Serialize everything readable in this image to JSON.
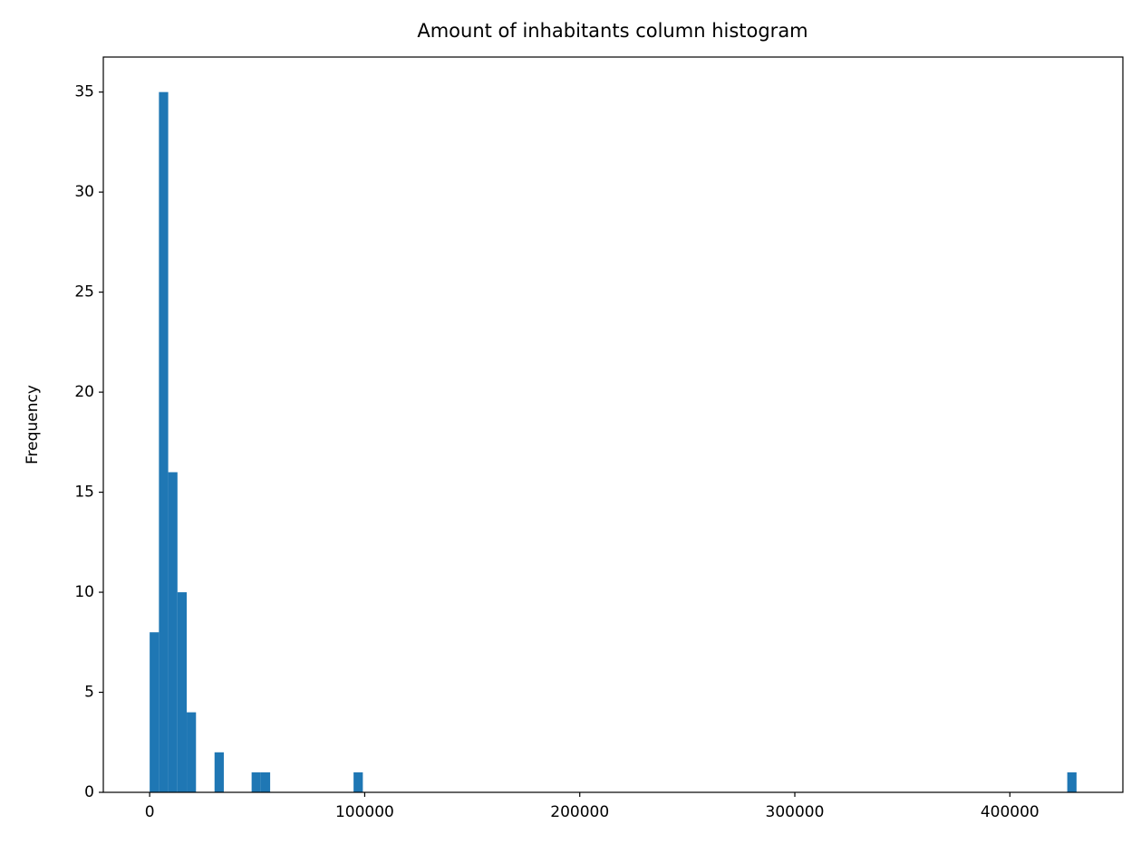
{
  "chart_data": {
    "type": "histogram",
    "title": "Amount of inhabitants column histogram",
    "y_label": "Frequency",
    "bins": [
      0,
      4310,
      8620,
      12930,
      17240,
      21550,
      25860,
      30170,
      34480,
      38790,
      43100,
      47410,
      51720,
      56030,
      60340,
      64650,
      68960,
      73270,
      77580,
      81890,
      86200,
      90510,
      94820,
      99130,
      103440,
      107750,
      112060,
      116370,
      120680,
      124990,
      129300,
      133610,
      137920,
      142230,
      146540,
      150850,
      155160,
      159470,
      163780,
      168090,
      172400,
      176710,
      181020,
      185330,
      189640,
      193950,
      198260,
      202570,
      206880,
      211190,
      215500,
      219810,
      224120,
      228430,
      232740,
      237050,
      241360,
      245670,
      249980,
      254290,
      258600,
      262910,
      267220,
      271530,
      275840,
      280150,
      284460,
      288770,
      293080,
      297390,
      301700,
      306010,
      310320,
      314630,
      318940,
      323250,
      327560,
      331870,
      336180,
      340490,
      344800,
      349110,
      353420,
      357730,
      362040,
      366350,
      370660,
      374970,
      379280,
      383590,
      387900,
      392210,
      396520,
      400830,
      405140,
      409450,
      413760,
      418070,
      422380,
      426690,
      431000
    ],
    "values": [
      8,
      35,
      16,
      10,
      4,
      0,
      0,
      2,
      0,
      0,
      0,
      1,
      1,
      0,
      0,
      0,
      0,
      0,
      0,
      0,
      0,
      0,
      1,
      0,
      0,
      0,
      0,
      0,
      0,
      0,
      0,
      0,
      0,
      0,
      0,
      0,
      0,
      0,
      0,
      0,
      0,
      0,
      0,
      0,
      0,
      0,
      0,
      0,
      0,
      0,
      0,
      0,
      0,
      0,
      0,
      0,
      0,
      0,
      0,
      0,
      0,
      0,
      0,
      0,
      0,
      0,
      0,
      0,
      0,
      0,
      0,
      0,
      0,
      0,
      0,
      0,
      0,
      0,
      0,
      0,
      0,
      0,
      0,
      0,
      0,
      0,
      0,
      0,
      0,
      0,
      0,
      0,
      0,
      0,
      0,
      0,
      0,
      0,
      0,
      1
    ],
    "color": "#1f77b4",
    "xlim": [
      -21550,
      452550
    ],
    "xticks": [
      0,
      100000,
      200000,
      300000,
      400000
    ],
    "ylim": [
      0,
      36.75
    ],
    "yticks": [
      0,
      5,
      10,
      15,
      20,
      25,
      30,
      35
    ]
  }
}
